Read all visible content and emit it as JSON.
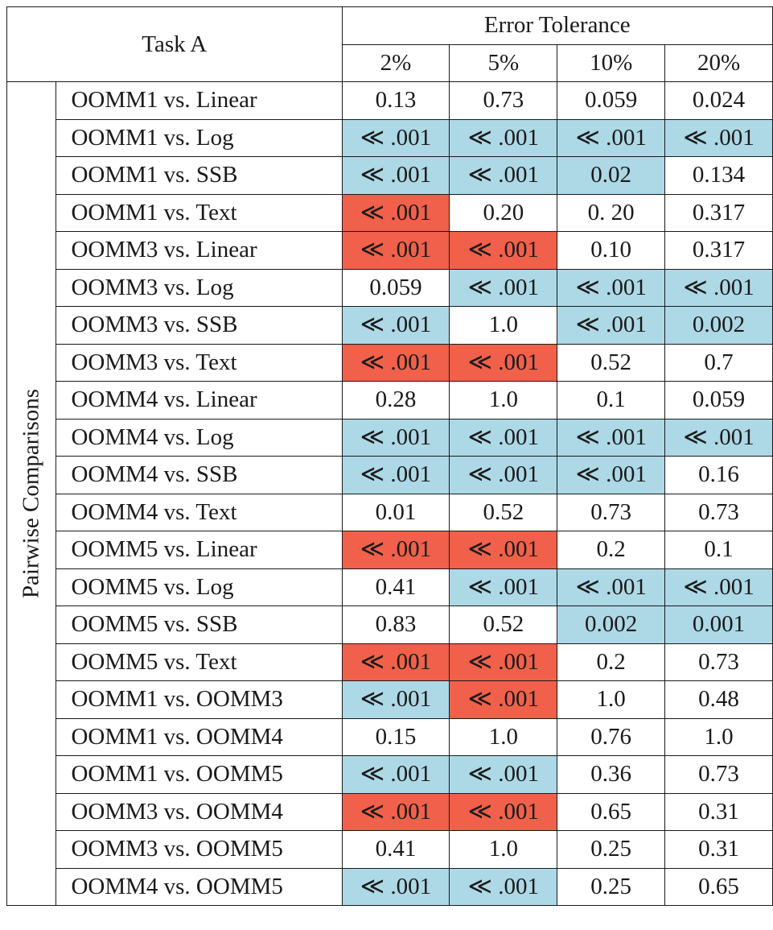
{
  "header": {
    "task": "Task A",
    "group": "Error Tolerance",
    "levels": [
      "2%",
      "5%",
      "10%",
      "20%"
    ]
  },
  "side_label": "Pairwise Comparisons",
  "legend_colors": {
    "blue": "#add8e6",
    "red": "#f0604a"
  },
  "rows": [
    {
      "label": "OOMM1 vs. Linear",
      "values": [
        "0.13",
        "0.73",
        "0.059",
        "0.024"
      ],
      "colors": [
        "",
        "",
        "",
        ""
      ]
    },
    {
      "label": "OOMM1 vs. Log",
      "values": [
        "≪ .001",
        "≪ .001",
        "≪ .001",
        "≪ .001"
      ],
      "colors": [
        "blue",
        "blue",
        "blue",
        "blue"
      ]
    },
    {
      "label": "OOMM1 vs. SSB",
      "values": [
        "≪ .001",
        "≪ .001",
        "0.02",
        "0.134"
      ],
      "colors": [
        "blue",
        "blue",
        "blue",
        ""
      ]
    },
    {
      "label": "OOMM1 vs. Text",
      "values": [
        "≪ .001",
        "0.20",
        "0. 20",
        "0.317"
      ],
      "colors": [
        "red",
        "",
        "",
        ""
      ]
    },
    {
      "label": "OOMM3 vs. Linear",
      "values": [
        "≪ .001",
        "≪ .001",
        "0.10",
        "0.317"
      ],
      "colors": [
        "red",
        "red",
        "",
        ""
      ]
    },
    {
      "label": "OOMM3 vs. Log",
      "values": [
        "0.059",
        "≪ .001",
        "≪ .001",
        "≪ .001"
      ],
      "colors": [
        "",
        "blue",
        "blue",
        "blue"
      ]
    },
    {
      "label": "OOMM3 vs. SSB",
      "values": [
        "≪ .001",
        "1.0",
        "≪ .001",
        "0.002"
      ],
      "colors": [
        "blue",
        "",
        "blue",
        "blue"
      ]
    },
    {
      "label": "OOMM3 vs. Text",
      "values": [
        "≪ .001",
        "≪ .001",
        "0.52",
        "0.7"
      ],
      "colors": [
        "red",
        "red",
        "",
        ""
      ]
    },
    {
      "label": "OOMM4 vs. Linear",
      "values": [
        "0.28",
        "1.0",
        "0.1",
        "0.059"
      ],
      "colors": [
        "",
        "",
        "",
        ""
      ]
    },
    {
      "label": "OOMM4 vs. Log",
      "values": [
        "≪ .001",
        "≪ .001",
        "≪ .001",
        "≪ .001"
      ],
      "colors": [
        "blue",
        "blue",
        "blue",
        "blue"
      ]
    },
    {
      "label": "OOMM4 vs. SSB",
      "values": [
        "≪ .001",
        "≪ .001",
        "≪ .001",
        "0.16"
      ],
      "colors": [
        "blue",
        "blue",
        "blue",
        ""
      ]
    },
    {
      "label": "OOMM4 vs. Text",
      "values": [
        "0.01",
        "0.52",
        "0.73",
        "0.73"
      ],
      "colors": [
        "",
        "",
        "",
        ""
      ]
    },
    {
      "label": "OOMM5 vs. Linear",
      "values": [
        "≪ .001",
        "≪ .001",
        "0.2",
        "0.1"
      ],
      "colors": [
        "red",
        "red",
        "",
        ""
      ]
    },
    {
      "label": "OOMM5 vs. Log",
      "values": [
        "0.41",
        "≪ .001",
        "≪ .001",
        "≪ .001"
      ],
      "colors": [
        "",
        "blue",
        "blue",
        "blue"
      ]
    },
    {
      "label": "OOMM5 vs. SSB",
      "values": [
        "0.83",
        "0.52",
        "0.002",
        "0.001"
      ],
      "colors": [
        "",
        "",
        "blue",
        "blue"
      ]
    },
    {
      "label": "OOMM5 vs. Text",
      "values": [
        "≪ .001",
        "≪ .001",
        "0.2",
        "0.73"
      ],
      "colors": [
        "red",
        "red",
        "",
        ""
      ]
    },
    {
      "label": "OOMM1 vs. OOMM3",
      "values": [
        "≪ .001",
        "≪ .001",
        "1.0",
        "0.48"
      ],
      "colors": [
        "blue",
        "red",
        "",
        ""
      ]
    },
    {
      "label": "OOMM1 vs. OOMM4",
      "values": [
        "0.15",
        "1.0",
        "0.76",
        "1.0"
      ],
      "colors": [
        "",
        "",
        "",
        ""
      ]
    },
    {
      "label": "OOMM1 vs. OOMM5",
      "values": [
        "≪ .001",
        "≪ .001",
        "0.36",
        "0.73"
      ],
      "colors": [
        "blue",
        "blue",
        "",
        ""
      ]
    },
    {
      "label": "OOMM3 vs. OOMM4",
      "values": [
        "≪ .001",
        "≪ .001",
        "0.65",
        "0.31"
      ],
      "colors": [
        "red",
        "red",
        "",
        ""
      ]
    },
    {
      "label": "OOMM3 vs. OOMM5",
      "values": [
        "0.41",
        "1.0",
        "0.25",
        "0.31"
      ],
      "colors": [
        "",
        "",
        "",
        ""
      ]
    },
    {
      "label": "OOMM4 vs. OOMM5",
      "values": [
        "≪ .001",
        "≪ .001",
        "0.25",
        "0.65"
      ],
      "colors": [
        "blue",
        "blue",
        "",
        ""
      ]
    }
  ]
}
